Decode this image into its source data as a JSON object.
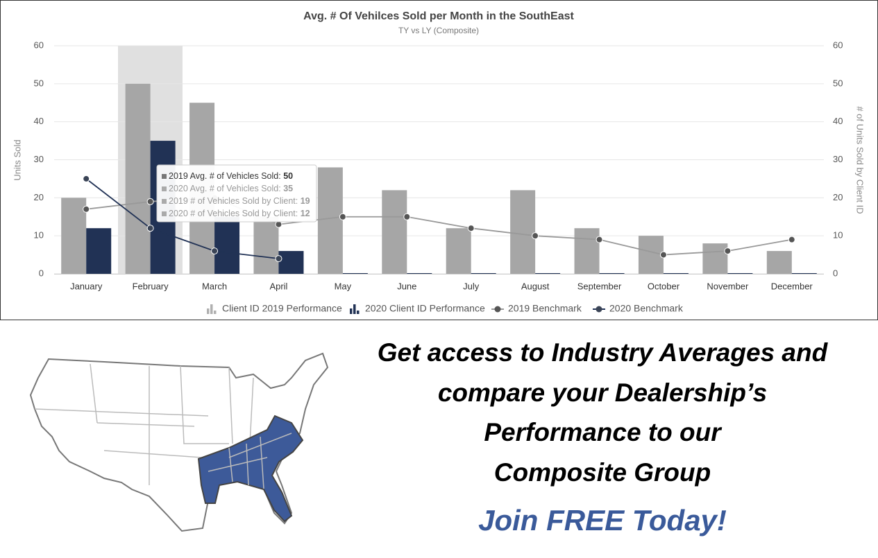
{
  "chart_data": {
    "type": "bar",
    "title": "Avg. # Of Vehilces Sold per Month in the SouthEast",
    "subtitle": "TY vs LY (Composite)",
    "ylabel": "Units Sold",
    "y2label": "# of Units Sold by Client ID",
    "categories": [
      "January",
      "February",
      "March",
      "April",
      "May",
      "June",
      "July",
      "August",
      "September",
      "October",
      "November",
      "December"
    ],
    "series": [
      {
        "name": "Client ID 2019 Performance",
        "type": "bar",
        "color": "#a6a6a6",
        "values": [
          20,
          50,
          45,
          15,
          28,
          22,
          12,
          22,
          12,
          10,
          8,
          6
        ]
      },
      {
        "name": "2020 Client ID Performance",
        "type": "bar",
        "color": "#213255",
        "values": [
          12,
          35,
          15,
          6,
          0,
          0,
          0,
          0,
          0,
          0,
          0,
          0
        ]
      },
      {
        "name": "2019 Benchmark",
        "type": "line",
        "axis": "y2",
        "color": "#999999",
        "values": [
          17,
          19,
          20,
          13,
          15,
          15,
          12,
          10,
          9,
          5,
          6,
          9
        ]
      },
      {
        "name": "2020 Benchmark",
        "type": "line",
        "axis": "y2",
        "color": "#213255",
        "values": [
          25,
          12,
          6,
          4,
          null,
          null,
          null,
          null,
          null,
          null,
          null,
          null
        ]
      }
    ],
    "ylim": [
      0,
      60
    ],
    "yticks": [
      0,
      10,
      20,
      30,
      40,
      50,
      60
    ],
    "y2lim": [
      0,
      60
    ],
    "y2ticks": [
      0,
      10,
      20,
      30,
      40,
      50,
      60
    ],
    "grid": true
  },
  "tooltip": {
    "items": [
      "2019 Avg. # of Vehicles Sold:",
      "2020 Avg. # of Vehicles Sold:",
      "2019 # of Vehicles Sold by Client:",
      "2020 # of Vehicles Sold by Client:"
    ]
  },
  "promo": {
    "headline": [
      "Get access to Industry Averages and",
      "compare your Dealership’s",
      "Performance to our",
      "Composite Group"
    ],
    "cta": "Join FREE Today!"
  }
}
